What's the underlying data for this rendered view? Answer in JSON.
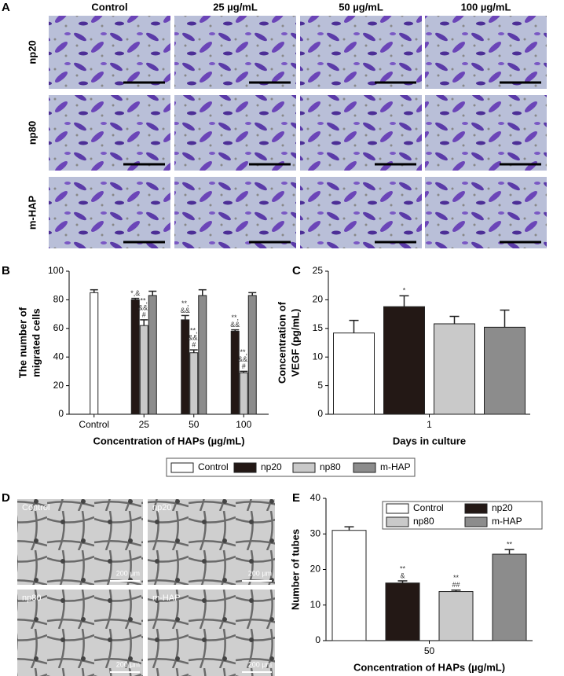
{
  "figure": {
    "panel_a": {
      "letter": "A",
      "columns": [
        "Control",
        "25 µg/mL",
        "50 µg/mL",
        "100 µg/mL"
      ],
      "rows": [
        "np20",
        "np80",
        "m-HAP"
      ]
    },
    "panel_d": {
      "letter": "D",
      "labels": [
        "Control",
        "np20",
        "np80",
        "m-HAP"
      ],
      "scale_bar": "200 µm"
    }
  },
  "chart_data": [
    {
      "type": "bar",
      "panel": "B",
      "ylabel": [
        "The number of",
        "migrated cells"
      ],
      "xlabel": "Concentration of HAPs (µg/mL)",
      "categories": [
        "Control",
        "25",
        "50",
        "100"
      ],
      "ylim": [
        0,
        100
      ],
      "yticks": [
        0,
        20,
        40,
        60,
        80,
        100
      ],
      "legend": "below",
      "series": [
        {
          "name": "Control",
          "color": "#ffffff",
          "values": [
            85,
            null,
            null,
            null
          ],
          "errors": [
            2,
            null,
            null,
            null
          ]
        },
        {
          "name": "np20",
          "color": "#231815",
          "values": [
            null,
            80,
            66,
            58
          ],
          "errors": [
            null,
            1,
            3,
            1
          ],
          "notes": [
            null,
            [
              "*,&"
            ],
            [
              "**,",
              "&&"
            ],
            [
              "**,",
              "&&"
            ]
          ]
        },
        {
          "name": "np80",
          "color": "#c9c9c9",
          "values": [
            null,
            62,
            43,
            29
          ],
          "errors": [
            null,
            4,
            2,
            1
          ],
          "notes": [
            null,
            [
              "**,",
              "&&,",
              "#"
            ],
            [
              "**,",
              "&&,",
              "#"
            ],
            [
              "**,",
              "&&,",
              "#"
            ]
          ]
        },
        {
          "name": "m-HAP",
          "color": "#8c8c8c",
          "values": [
            null,
            83,
            83,
            83
          ],
          "errors": [
            null,
            3,
            4,
            2
          ]
        }
      ]
    },
    {
      "type": "bar",
      "panel": "C",
      "ylabel": [
        "Concentration of",
        "VEGF (pg/mL)"
      ],
      "xlabel": "Days in culture",
      "categories": [
        "1"
      ],
      "ylim": [
        0,
        25
      ],
      "yticks": [
        0,
        5,
        10,
        15,
        20,
        25
      ],
      "series": [
        {
          "name": "Control",
          "color": "#ffffff",
          "values": [
            14.2
          ],
          "errors": [
            2.2
          ]
        },
        {
          "name": "np20",
          "color": "#231815",
          "values": [
            18.8
          ],
          "errors": [
            1.9
          ],
          "notes": [
            [
              "*"
            ]
          ]
        },
        {
          "name": "np80",
          "color": "#c9c9c9",
          "values": [
            15.8
          ],
          "errors": [
            1.3
          ]
        },
        {
          "name": "m-HAP",
          "color": "#8c8c8c",
          "values": [
            15.2
          ],
          "errors": [
            3
          ]
        }
      ]
    },
    {
      "type": "bar",
      "panel": "E",
      "ylabel": [
        "Number of tubes"
      ],
      "xlabel": "Concentration of HAPs (µg/mL)",
      "categories": [
        "50"
      ],
      "ylim": [
        0,
        40
      ],
      "yticks": [
        0,
        10,
        20,
        30,
        40
      ],
      "legend": "top-right",
      "series": [
        {
          "name": "Control",
          "color": "#ffffff",
          "values": [
            31
          ],
          "errors": [
            1
          ]
        },
        {
          "name": "np20",
          "color": "#231815",
          "values": [
            16.2
          ],
          "errors": [
            0.6
          ],
          "notes": [
            [
              "**",
              "&"
            ]
          ]
        },
        {
          "name": "np80",
          "color": "#c9c9c9",
          "values": [
            13.8
          ],
          "errors": [
            0.4
          ],
          "notes": [
            [
              "**",
              "##"
            ]
          ]
        },
        {
          "name": "m-HAP",
          "color": "#8c8c8c",
          "values": [
            24.3
          ],
          "errors": [
            1.3
          ],
          "notes": [
            [
              "**"
            ]
          ]
        }
      ]
    }
  ]
}
